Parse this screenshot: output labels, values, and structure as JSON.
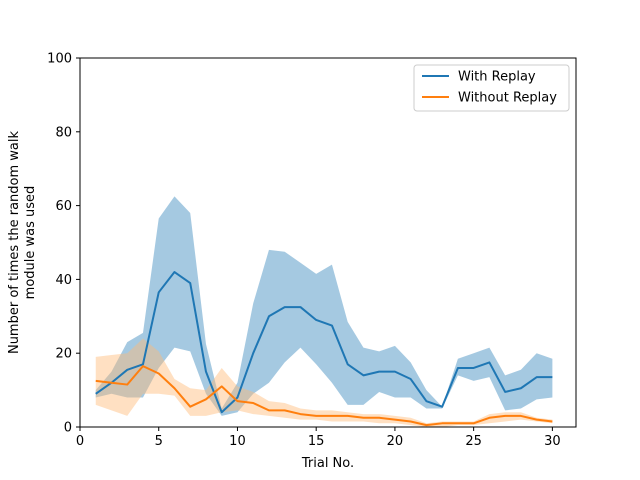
{
  "chart_data": {
    "type": "line",
    "title": "",
    "xlabel": "Trial No.",
    "ylabel_lines": [
      "Number of times the random walk",
      "module was used"
    ],
    "xlim": [
      0,
      31.5
    ],
    "ylim": [
      0,
      100
    ],
    "xticks": [
      0,
      5,
      10,
      15,
      20,
      25,
      30
    ],
    "yticks": [
      0,
      20,
      40,
      60,
      80,
      100
    ],
    "grid": false,
    "legend_position": "top-right",
    "x": [
      1,
      2,
      3,
      4,
      5,
      6,
      7,
      8,
      9,
      10,
      11,
      12,
      13,
      14,
      15,
      16,
      17,
      18,
      19,
      20,
      21,
      22,
      23,
      24,
      25,
      26,
      27,
      28,
      29,
      30
    ],
    "series": [
      {
        "name": "With Replay",
        "color": "#1f77b4",
        "band_color": "#1f77b4",
        "values": [
          9,
          12,
          15.5,
          17,
          36.5,
          42,
          39,
          15,
          4,
          8,
          20,
          30,
          32.5,
          32.5,
          29,
          27.5,
          17,
          14,
          15,
          15,
          13,
          7,
          5.5,
          16,
          16,
          17.5,
          9.5,
          10.5,
          13.5,
          13.5
        ],
        "lower": [
          8,
          9,
          8,
          8,
          16,
          21.5,
          20.5,
          9,
          3,
          4,
          9,
          12,
          17.5,
          21.5,
          17,
          12,
          6,
          6,
          9.5,
          8,
          8,
          5,
          5,
          14,
          12.5,
          13.5,
          4.5,
          5,
          7.5,
          8
        ],
        "upper": [
          10,
          15,
          23,
          25.5,
          56.5,
          62.5,
          58,
          22.5,
          5,
          12,
          33.5,
          48,
          47.5,
          44.5,
          41.5,
          44,
          28.5,
          21.5,
          20.5,
          22,
          17.5,
          10,
          5.5,
          18.5,
          20,
          21.5,
          14,
          15.5,
          20,
          18.5
        ]
      },
      {
        "name": "Without Replay",
        "color": "#ff7f0e",
        "band_color": "#ffbb78",
        "values": [
          12.5,
          12,
          11.5,
          16.5,
          14.5,
          10.5,
          5.5,
          7.5,
          11,
          7,
          6.5,
          4.5,
          4.5,
          3.5,
          3,
          3,
          3,
          2.5,
          2.5,
          2,
          1.5,
          0.5,
          1,
          1,
          1,
          2.5,
          3,
          3,
          2,
          1.5
        ],
        "lower": [
          6,
          4.5,
          3,
          9,
          9,
          8.5,
          3,
          3,
          4,
          4.5,
          3.5,
          3,
          2.5,
          2,
          2,
          1.5,
          1.5,
          1.5,
          1,
          1,
          0.5,
          0,
          0,
          0.5,
          0.5,
          1,
          1.5,
          2,
          1.5,
          1
        ],
        "upper": [
          19,
          19.5,
          20,
          24,
          20.5,
          13,
          10.5,
          10,
          16,
          11,
          9.5,
          7,
          6.5,
          5,
          4.5,
          4.5,
          4,
          3.5,
          3.5,
          3,
          2.5,
          1,
          1.5,
          1.5,
          1.5,
          3.5,
          4,
          4,
          2.5,
          2
        ]
      }
    ]
  }
}
